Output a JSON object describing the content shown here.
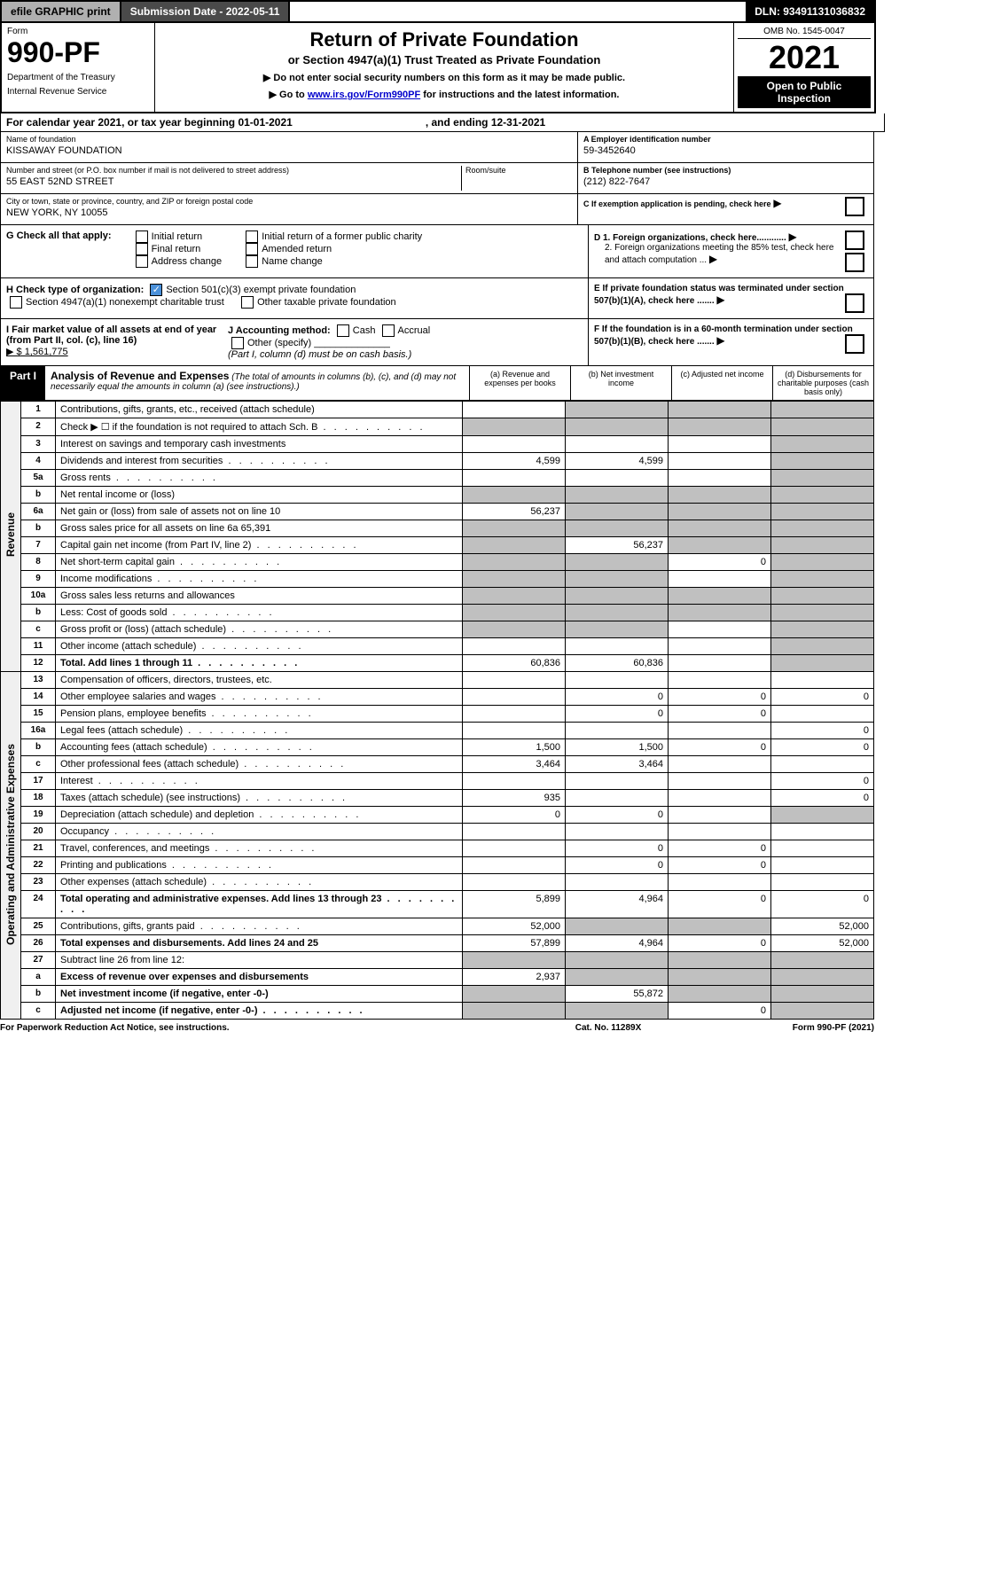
{
  "topbar": {
    "efile": "efile GRAPHIC print",
    "submission_label": "Submission Date - 2022-05-11",
    "dln": "DLN: 93491131036832"
  },
  "header": {
    "form_label": "Form",
    "form_number": "990-PF",
    "dept1": "Department of the Treasury",
    "dept2": "Internal Revenue Service",
    "title": "Return of Private Foundation",
    "subtitle": "or Section 4947(a)(1) Trust Treated as Private Foundation",
    "warn1": "▶ Do not enter social security numbers on this form as it may be made public.",
    "warn2_pre": "▶ Go to ",
    "warn2_link": "www.irs.gov/Form990PF",
    "warn2_post": " for instructions and the latest information.",
    "omb": "OMB No. 1545-0047",
    "year": "2021",
    "open_public": "Open to Public Inspection"
  },
  "calendar": {
    "text_pre": "For calendar year 2021, or tax year beginning 01-01-2021",
    "text_post": ", and ending 12-31-2021"
  },
  "info": {
    "name_label": "Name of foundation",
    "name_value": "KISSAWAY FOUNDATION",
    "addr_label": "Number and street (or P.O. box number if mail is not delivered to street address)",
    "addr_suite_label": "Room/suite",
    "addr_value": "55 EAST 52ND STREET",
    "city_label": "City or town, state or province, country, and ZIP or foreign postal code",
    "city_value": "NEW YORK, NY  10055",
    "a_label": "A Employer identification number",
    "a_value": "59-3452640",
    "b_label": "B Telephone number (see instructions)",
    "b_value": "(212) 822-7647",
    "c_label": "C If exemption application is pending, check here"
  },
  "checks": {
    "g_label": "G Check all that apply:",
    "g_opts": [
      "Initial return",
      "Final return",
      "Address change",
      "Initial return of a former public charity",
      "Amended return",
      "Name change"
    ],
    "h_label": "H Check type of organization:",
    "h_opt1": "Section 501(c)(3) exempt private foundation",
    "h_opt2": "Section 4947(a)(1) nonexempt charitable trust",
    "h_opt3": "Other taxable private foundation",
    "i_label": "I Fair market value of all assets at end of year (from Part II, col. (c), line 16)",
    "i_value": "▶ $  1,561,775",
    "j_label": "J Accounting method:",
    "j_cash": "Cash",
    "j_accrual": "Accrual",
    "j_other": "Other (specify)",
    "j_note": "(Part I, column (d) must be on cash basis.)",
    "d1": "D 1. Foreign organizations, check here............",
    "d2": "2. Foreign organizations meeting the 85% test, check here and attach computation ...",
    "e": "E  If private foundation status was terminated under section 507(b)(1)(A), check here .......",
    "f": "F  If the foundation is in a 60-month termination under section 507(b)(1)(B), check here .......",
    "arrow": "▶"
  },
  "part1": {
    "label": "Part I",
    "title": "Analysis of Revenue and Expenses",
    "title_note": "(The total of amounts in columns (b), (c), and (d) may not necessarily equal the amounts in column (a) (see instructions).)",
    "col_a": "(a)   Revenue and expenses per books",
    "col_b": "(b)   Net investment income",
    "col_c": "(c)   Adjusted net income",
    "col_d": "(d)   Disbursements for charitable purposes (cash basis only)"
  },
  "side_labels": {
    "revenue": "Revenue",
    "expenses": "Operating and Administrative Expenses"
  },
  "rows": [
    {
      "n": "1",
      "desc": "Contributions, gifts, grants, etc., received (attach schedule)",
      "a": "",
      "b": "grey",
      "c": "grey",
      "d": "grey"
    },
    {
      "n": "2",
      "desc": "Check ▶ ☐ if the foundation is not required to attach Sch. B",
      "a": "grey",
      "b": "grey",
      "c": "grey",
      "d": "grey",
      "dots": true
    },
    {
      "n": "3",
      "desc": "Interest on savings and temporary cash investments",
      "a": "",
      "b": "",
      "c": "",
      "d": "grey"
    },
    {
      "n": "4",
      "desc": "Dividends and interest from securities",
      "a": "4,599",
      "b": "4,599",
      "c": "",
      "d": "grey",
      "dots": true
    },
    {
      "n": "5a",
      "desc": "Gross rents",
      "a": "",
      "b": "",
      "c": "",
      "d": "grey",
      "dots": true
    },
    {
      "n": "b",
      "desc": "Net rental income or (loss)",
      "a": "grey",
      "b": "grey",
      "c": "grey",
      "d": "grey"
    },
    {
      "n": "6a",
      "desc": "Net gain or (loss) from sale of assets not on line 10",
      "a": "56,237",
      "b": "grey",
      "c": "grey",
      "d": "grey"
    },
    {
      "n": "b",
      "desc": "Gross sales price for all assets on line 6a            65,391",
      "a": "grey",
      "b": "grey",
      "c": "grey",
      "d": "grey"
    },
    {
      "n": "7",
      "desc": "Capital gain net income (from Part IV, line 2)",
      "a": "grey",
      "b": "56,237",
      "c": "grey",
      "d": "grey",
      "dots": true
    },
    {
      "n": "8",
      "desc": "Net short-term capital gain",
      "a": "grey",
      "b": "grey",
      "c": "0",
      "d": "grey",
      "dots": true
    },
    {
      "n": "9",
      "desc": "Income modifications",
      "a": "grey",
      "b": "grey",
      "c": "",
      "d": "grey",
      "dots": true
    },
    {
      "n": "10a",
      "desc": "Gross sales less returns and allowances",
      "a": "grey",
      "b": "grey",
      "c": "grey",
      "d": "grey"
    },
    {
      "n": "b",
      "desc": "Less: Cost of goods sold",
      "a": "grey",
      "b": "grey",
      "c": "grey",
      "d": "grey",
      "dots": true
    },
    {
      "n": "c",
      "desc": "Gross profit or (loss) (attach schedule)",
      "a": "grey",
      "b": "grey",
      "c": "",
      "d": "grey",
      "dots": true
    },
    {
      "n": "11",
      "desc": "Other income (attach schedule)",
      "a": "",
      "b": "",
      "c": "",
      "d": "grey",
      "dots": true
    },
    {
      "n": "12",
      "desc": "Total. Add lines 1 through 11",
      "a": "60,836",
      "b": "60,836",
      "c": "",
      "d": "grey",
      "bold": true,
      "dots": true
    },
    {
      "n": "13",
      "desc": "Compensation of officers, directors, trustees, etc.",
      "a": "",
      "b": "",
      "c": "",
      "d": ""
    },
    {
      "n": "14",
      "desc": "Other employee salaries and wages",
      "a": "",
      "b": "0",
      "c": "0",
      "d": "0",
      "dots": true
    },
    {
      "n": "15",
      "desc": "Pension plans, employee benefits",
      "a": "",
      "b": "0",
      "c": "0",
      "d": "",
      "dots": true
    },
    {
      "n": "16a",
      "desc": "Legal fees (attach schedule)",
      "a": "",
      "b": "",
      "c": "",
      "d": "0",
      "dots": true
    },
    {
      "n": "b",
      "desc": "Accounting fees (attach schedule)",
      "a": "1,500",
      "b": "1,500",
      "c": "0",
      "d": "0",
      "dots": true
    },
    {
      "n": "c",
      "desc": "Other professional fees (attach schedule)",
      "a": "3,464",
      "b": "3,464",
      "c": "",
      "d": "",
      "dots": true
    },
    {
      "n": "17",
      "desc": "Interest",
      "a": "",
      "b": "",
      "c": "",
      "d": "0",
      "dots": true
    },
    {
      "n": "18",
      "desc": "Taxes (attach schedule) (see instructions)",
      "a": "935",
      "b": "",
      "c": "",
      "d": "0",
      "dots": true
    },
    {
      "n": "19",
      "desc": "Depreciation (attach schedule) and depletion",
      "a": "0",
      "b": "0",
      "c": "",
      "d": "grey",
      "dots": true
    },
    {
      "n": "20",
      "desc": "Occupancy",
      "a": "",
      "b": "",
      "c": "",
      "d": "",
      "dots": true
    },
    {
      "n": "21",
      "desc": "Travel, conferences, and meetings",
      "a": "",
      "b": "0",
      "c": "0",
      "d": "",
      "dots": true
    },
    {
      "n": "22",
      "desc": "Printing and publications",
      "a": "",
      "b": "0",
      "c": "0",
      "d": "",
      "dots": true
    },
    {
      "n": "23",
      "desc": "Other expenses (attach schedule)",
      "a": "",
      "b": "",
      "c": "",
      "d": "",
      "dots": true
    },
    {
      "n": "24",
      "desc": "Total operating and administrative expenses. Add lines 13 through 23",
      "a": "5,899",
      "b": "4,964",
      "c": "0",
      "d": "0",
      "bold": true,
      "dots": true
    },
    {
      "n": "25",
      "desc": "Contributions, gifts, grants paid",
      "a": "52,000",
      "b": "grey",
      "c": "grey",
      "d": "52,000",
      "dots": true
    },
    {
      "n": "26",
      "desc": "Total expenses and disbursements. Add lines 24 and 25",
      "a": "57,899",
      "b": "4,964",
      "c": "0",
      "d": "52,000",
      "bold": true
    },
    {
      "n": "27",
      "desc": "Subtract line 26 from line 12:",
      "a": "grey",
      "b": "grey",
      "c": "grey",
      "d": "grey"
    },
    {
      "n": "a",
      "desc": "Excess of revenue over expenses and disbursements",
      "a": "2,937",
      "b": "grey",
      "c": "grey",
      "d": "grey",
      "bold": true
    },
    {
      "n": "b",
      "desc": "Net investment income (if negative, enter -0-)",
      "a": "grey",
      "b": "55,872",
      "c": "grey",
      "d": "grey",
      "bold": true
    },
    {
      "n": "c",
      "desc": "Adjusted net income (if negative, enter -0-)",
      "a": "grey",
      "b": "grey",
      "c": "0",
      "d": "grey",
      "bold": true,
      "dots": true
    }
  ],
  "footer": {
    "left": "For Paperwork Reduction Act Notice, see instructions.",
    "mid": "Cat. No. 11289X",
    "right": "Form 990-PF (2021)"
  }
}
